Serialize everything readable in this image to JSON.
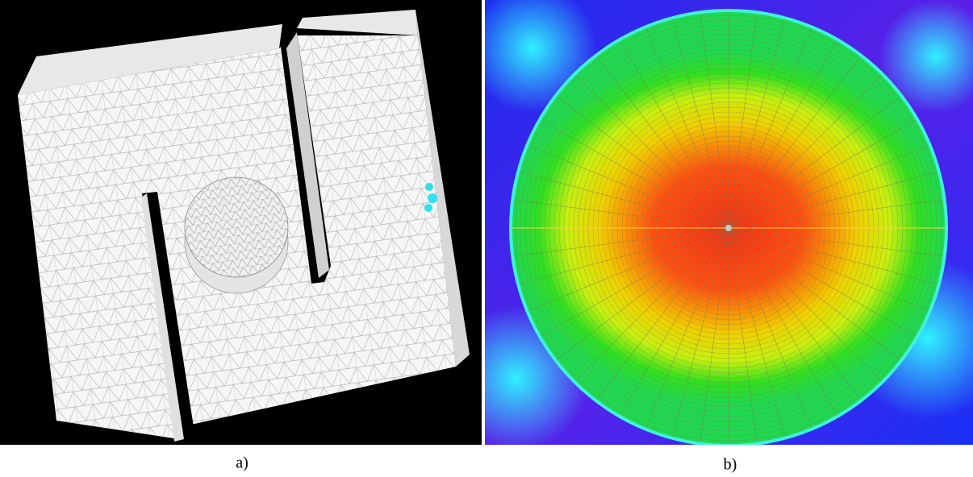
{
  "figure": {
    "panels": [
      {
        "caption": "a)"
      },
      {
        "caption": "b)"
      }
    ]
  }
}
